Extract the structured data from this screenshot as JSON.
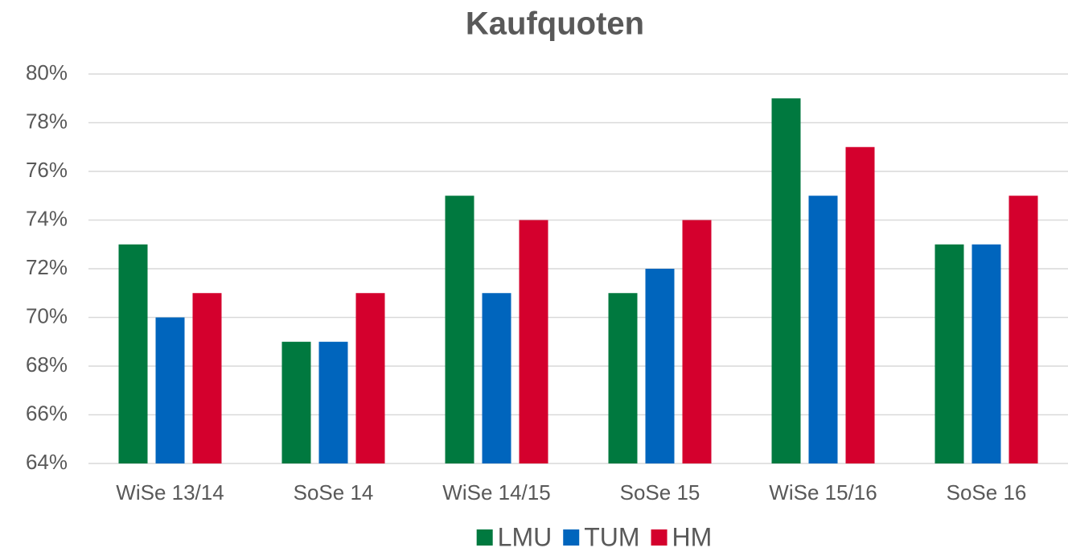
{
  "chart_data": {
    "type": "bar",
    "title": "Kaufquoten",
    "categories": [
      "WiSe 13/14",
      "SoSe 14",
      "WiSe 14/15",
      "SoSe 15",
      "WiSe 15/16",
      "SoSe 16"
    ],
    "series": [
      {
        "name": "LMU",
        "color": "#00793f",
        "values": [
          73,
          69,
          75,
          71,
          79,
          73
        ]
      },
      {
        "name": "TUM",
        "color": "#0065bd",
        "values": [
          70,
          69,
          71,
          72,
          75,
          73
        ]
      },
      {
        "name": "HM",
        "color": "#d4002d",
        "values": [
          71,
          71,
          74,
          74,
          77,
          75
        ]
      }
    ],
    "ylim": [
      64,
      80
    ],
    "yticks": [
      {
        "value": 64,
        "label": "64%"
      },
      {
        "value": 66,
        "label": "66%"
      },
      {
        "value": 68,
        "label": "68%"
      },
      {
        "value": 70,
        "label": "70%"
      },
      {
        "value": 72,
        "label": "72%"
      },
      {
        "value": 74,
        "label": "74%"
      },
      {
        "value": 76,
        "label": "76%"
      },
      {
        "value": 78,
        "label": "78%"
      },
      {
        "value": 80,
        "label": "80%"
      }
    ],
    "grid": true,
    "legend": "bottom"
  }
}
